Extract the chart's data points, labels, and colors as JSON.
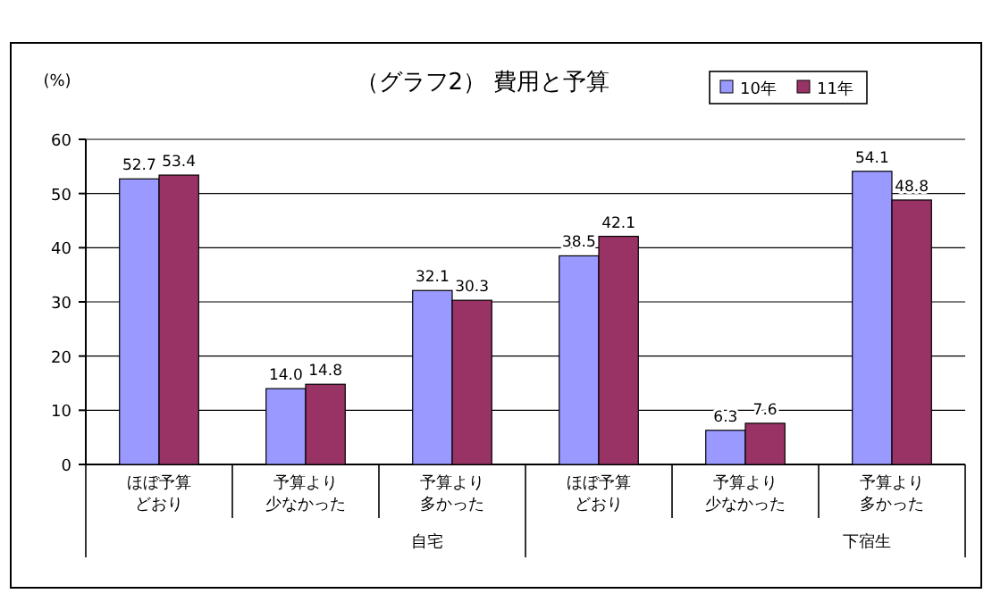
{
  "chart_data": {
    "type": "bar",
    "title": "（グラフ2） 費用と予算",
    "ylabel": "(%)",
    "categories": [
      "ほぼ予算どおり",
      "予算より少なかった",
      "予算より多かった",
      "ほぼ予算どおり",
      "予算より少なかった",
      "予算より多かった"
    ],
    "annotations": [
      "自宅",
      "下宿生"
    ],
    "series": [
      {
        "name": "10年",
        "color": "#9999ff",
        "values": [
          52.7,
          14.0,
          32.1,
          38.5,
          6.3,
          54.1
        ],
        "value_labels": [
          "52.7",
          "14.0",
          "32.1",
          "38.5",
          "6.3",
          "54.1"
        ]
      },
      {
        "name": "11年",
        "color": "#993366",
        "values": [
          53.4,
          14.8,
          30.3,
          42.1,
          7.6,
          48.8
        ],
        "value_labels": [
          "53.4",
          "14.8",
          "30.3",
          "42.1",
          "7.6",
          "48.8"
        ]
      }
    ],
    "ylim": [
      0,
      60
    ],
    "yticks": [
      0,
      10,
      20,
      30,
      40,
      50,
      60
    ],
    "grid": "y",
    "legend": "top right"
  }
}
